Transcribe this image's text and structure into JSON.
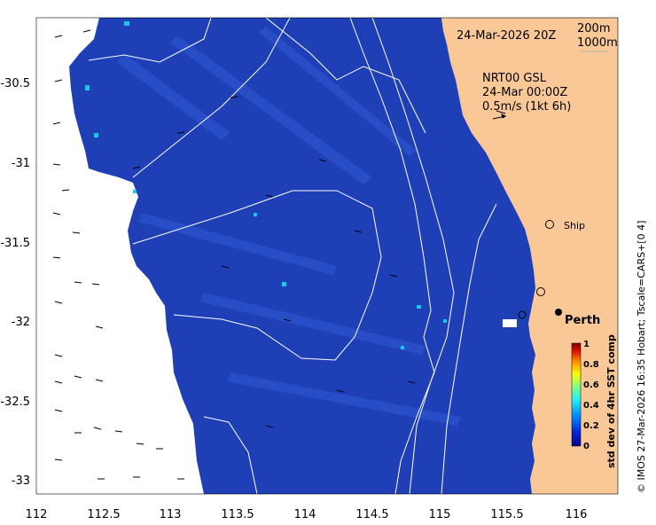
{
  "map": {
    "datetime": "24-Mar-2026 20Z",
    "legend_depths": [
      "200m",
      "1000m"
    ],
    "current_source": "NRT00 GSL",
    "current_date": "24-Mar 00:00Z",
    "current_scale": "0.5m/s (1kt 6h)",
    "places": [
      {
        "name": "Ship"
      },
      {
        "name": "Perth"
      }
    ],
    "x_axis": {
      "ticks": [
        "112",
        "112.5",
        "113",
        "113.5",
        "114",
        "114.5",
        "115",
        "115.5",
        "116"
      ]
    },
    "y_axis": {
      "ticks": [
        "-30.5",
        "-31",
        "-31.5",
        "-32",
        "-32.5",
        "-33"
      ]
    },
    "colorbar": {
      "title": "std dev of 4hr SST comp",
      "ticks": [
        "0",
        "0.2",
        "0.4",
        "0.6",
        "0.8",
        "1"
      ],
      "colors": [
        "#00008f",
        "#0050ff",
        "#00d0ff",
        "#60ff90",
        "#ffff00",
        "#ff8000",
        "#c00000",
        "#800000"
      ]
    },
    "credit": "© IMOS 27-Mar-2026 16:35 Hobart; Tscale=CARS+[0 4]",
    "palette": {
      "ocean": "#1e3fb8",
      "land": "#f9c896",
      "nodata": "#ffffff",
      "contour": "#ffffff"
    }
  }
}
